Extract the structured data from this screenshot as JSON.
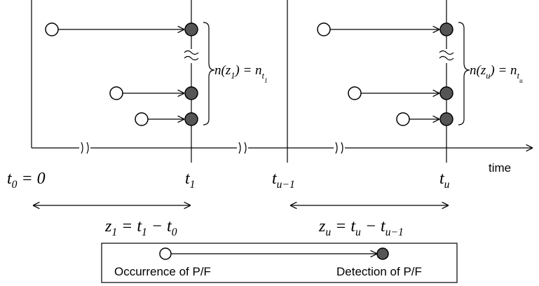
{
  "axis": {
    "label": "time"
  },
  "ticks": [
    [
      {
        "text": "t"
      },
      {
        "text": "0",
        "sub": 1
      },
      {
        "text": " = 0"
      }
    ],
    [
      {
        "text": "t"
      },
      {
        "text": "1",
        "sub": 1
      }
    ],
    [
      {
        "text": "t"
      },
      {
        "text": "u−1",
        "sub": 1
      }
    ],
    [
      {
        "text": "t"
      },
      {
        "text": "u",
        "sub": 1
      }
    ]
  ],
  "intervals": [
    [
      {
        "text": "z"
      },
      {
        "text": "1",
        "sub": 1
      },
      {
        "text": " = t"
      },
      {
        "text": "1",
        "sub": 1
      },
      {
        "text": " − t"
      },
      {
        "text": "0",
        "sub": 1
      }
    ],
    [
      {
        "text": "z"
      },
      {
        "text": "u",
        "sub": 1
      },
      {
        "text": " = t"
      },
      {
        "text": "u",
        "sub": 1
      },
      {
        "text": " − t"
      },
      {
        "text": "u−1",
        "sub": 1
      }
    ]
  ],
  "counts": [
    [
      {
        "text": "n(z"
      },
      {
        "text": "1",
        "sub": 1
      },
      {
        "text": ") = n"
      },
      {
        "text": "t",
        "sub": 1
      },
      {
        "text": "1",
        "sub": 2
      }
    ],
    [
      {
        "text": "n(z"
      },
      {
        "text": "u",
        "sub": 1
      },
      {
        "text": ") = n"
      },
      {
        "text": "t",
        "sub": 1
      },
      {
        "text": "u",
        "sub": 2
      }
    ]
  ],
  "legend": {
    "occurrence": "Occurrence of P/F",
    "detection": "Detection of P/F"
  }
}
